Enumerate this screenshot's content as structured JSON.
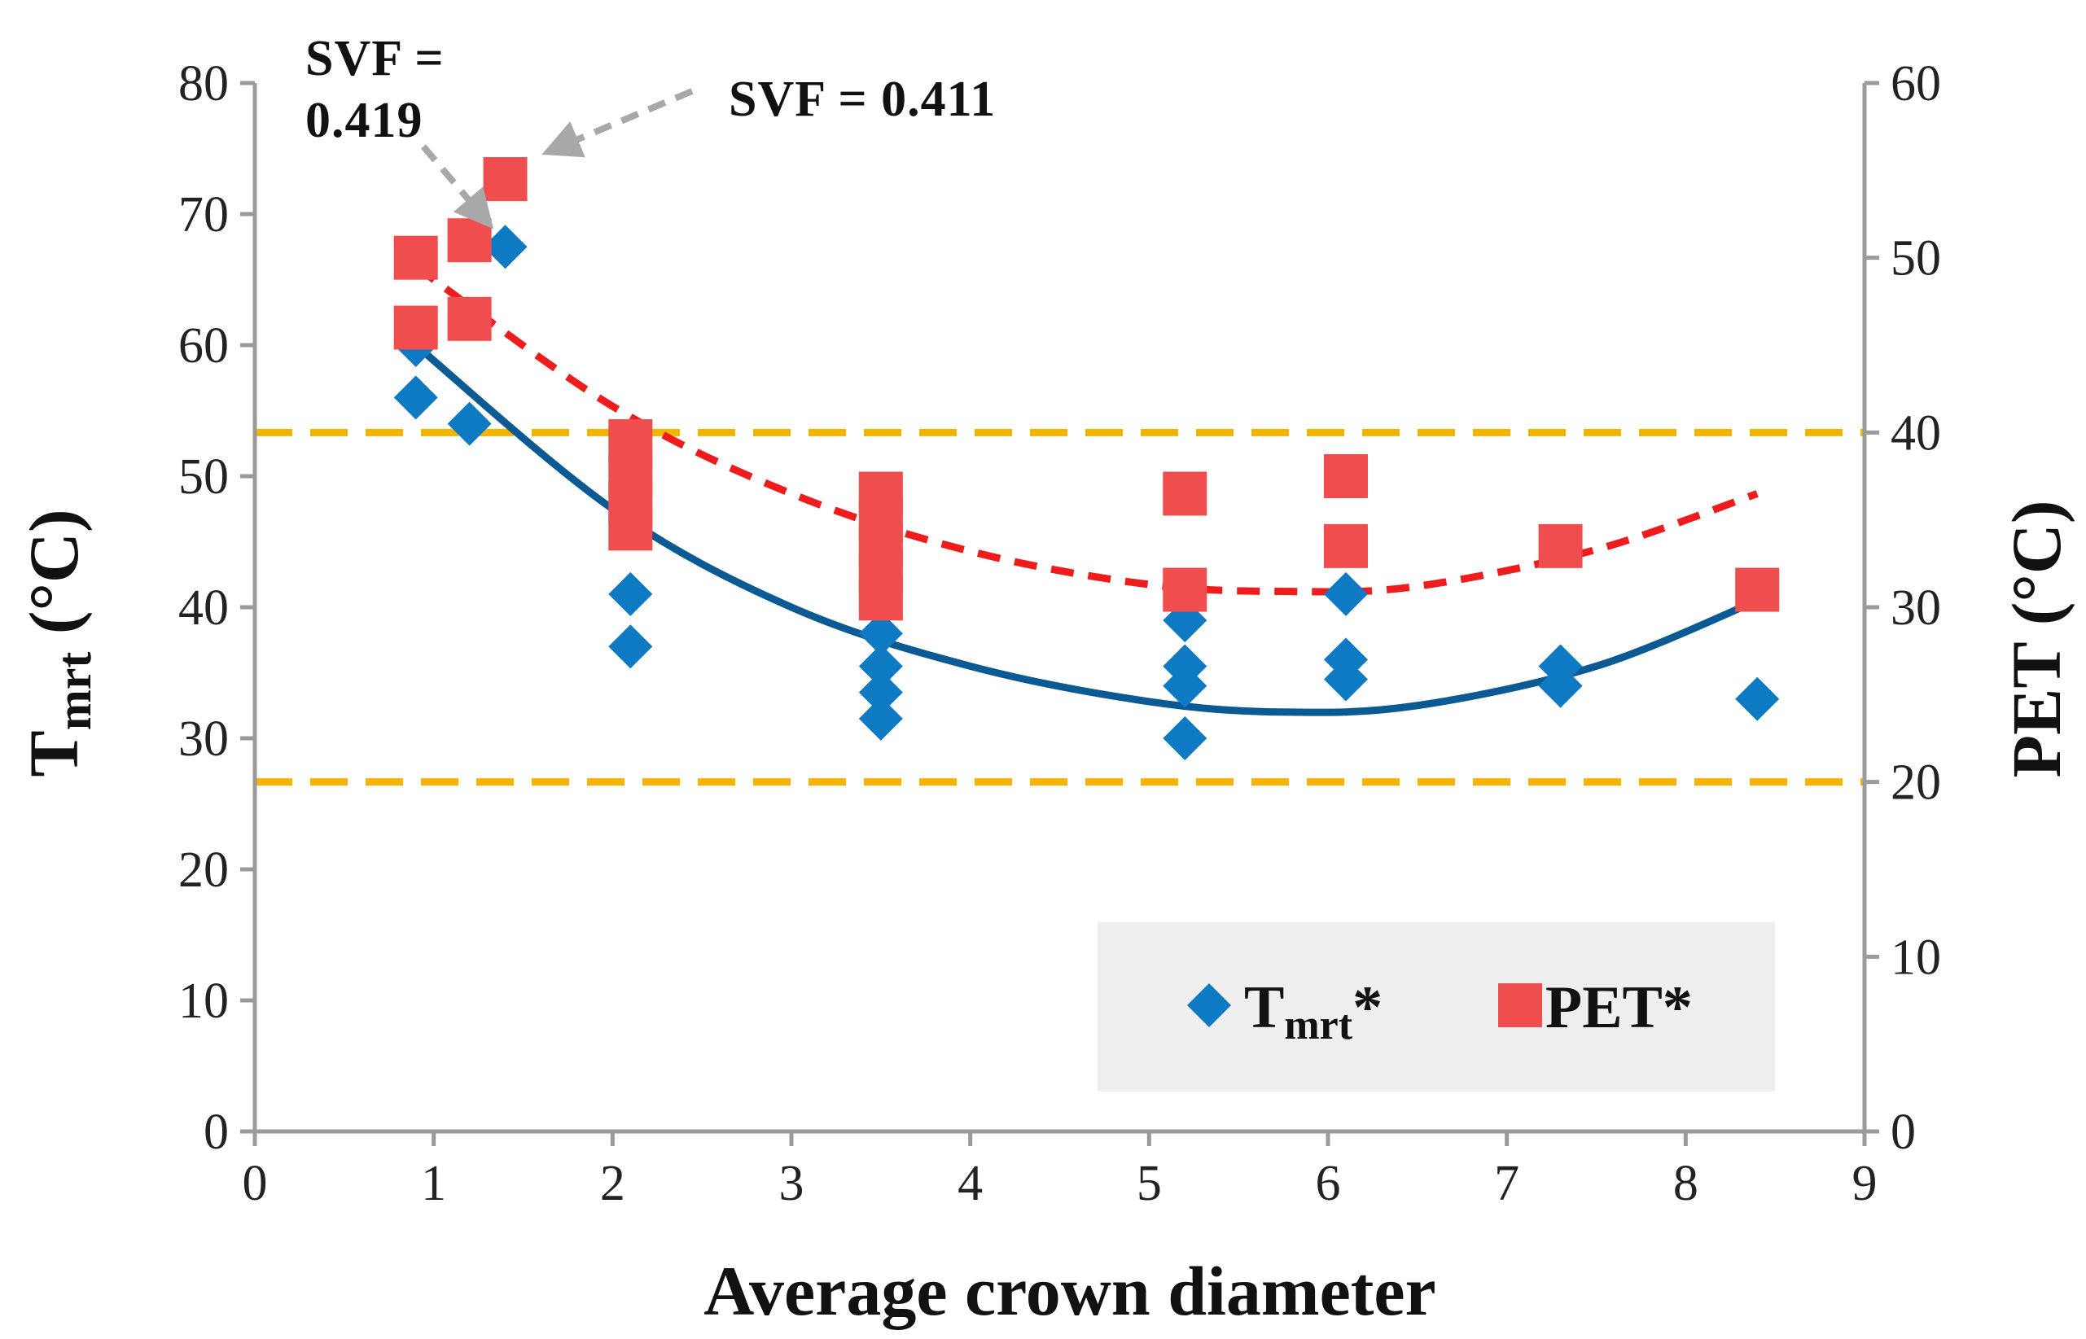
{
  "chart_data": {
    "type": "scatter",
    "title": "",
    "xlabel": "Average crown diameter",
    "ylabel_left": {
      "main": "T",
      "sub": "mrt",
      "unit": " (°C)"
    },
    "ylabel_right": "PET (°C)",
    "xlim": [
      0,
      9
    ],
    "ylim_left": [
      0,
      80
    ],
    "ylim_right": [
      0,
      60
    ],
    "x_ticks": [
      "0",
      "1",
      "2",
      "3",
      "4",
      "5",
      "6",
      "7",
      "8",
      "9"
    ],
    "y_left_ticks": [
      "0",
      "10",
      "20",
      "30",
      "40",
      "50",
      "60",
      "70",
      "80"
    ],
    "y_right_ticks": [
      "0",
      "10",
      "20",
      "30",
      "40",
      "50",
      "60"
    ],
    "grid": false,
    "series": [
      {
        "name": "Tmrt*",
        "legend_main": "T",
        "legend_sub": "mrt",
        "legend_suffix": "*",
        "axis": "left",
        "marker": "diamond",
        "color": "#0E7AC4",
        "points": [
          [
            0.9,
            60
          ],
          [
            0.9,
            56
          ],
          [
            1.2,
            62
          ],
          [
            1.2,
            54
          ],
          [
            1.4,
            67.5
          ],
          [
            2.1,
            41
          ],
          [
            2.1,
            37
          ],
          [
            3.5,
            38
          ],
          [
            3.5,
            35.5
          ],
          [
            3.5,
            33.5
          ],
          [
            3.5,
            31.5
          ],
          [
            5.2,
            39
          ],
          [
            5.2,
            35.5
          ],
          [
            5.2,
            34
          ],
          [
            5.2,
            30
          ],
          [
            6.1,
            41
          ],
          [
            6.1,
            36
          ],
          [
            6.1,
            34.5
          ],
          [
            7.3,
            35.5
          ],
          [
            7.3,
            34
          ],
          [
            8.4,
            33
          ]
        ]
      },
      {
        "name": "PET*",
        "legend_main": "PET",
        "legend_suffix": "*",
        "axis": "right",
        "marker": "square",
        "color": "#F04E4E",
        "points": [
          [
            0.9,
            50
          ],
          [
            0.9,
            46
          ],
          [
            1.2,
            51
          ],
          [
            1.2,
            46.5
          ],
          [
            1.4,
            54.5
          ],
          [
            2.1,
            39.5
          ],
          [
            2.1,
            37.5
          ],
          [
            2.1,
            36
          ],
          [
            2.1,
            34.5
          ],
          [
            3.5,
            36.5
          ],
          [
            3.5,
            35
          ],
          [
            3.5,
            33.5
          ],
          [
            3.5,
            32
          ],
          [
            3.5,
            30.5
          ],
          [
            5.2,
            36.5
          ],
          [
            5.2,
            31
          ],
          [
            6.1,
            37.5
          ],
          [
            6.1,
            33.5
          ],
          [
            7.3,
            33.5
          ],
          [
            8.4,
            31
          ]
        ]
      }
    ],
    "trendlines": [
      {
        "series": "Tmrt*",
        "type": "polynomial-2",
        "axis": "left",
        "style": "solid",
        "color": "#0B5A94",
        "points": [
          [
            0.9,
            60
          ],
          [
            2.0,
            47.5
          ],
          [
            3.0,
            40
          ],
          [
            4.0,
            35.5
          ],
          [
            5.0,
            32.8
          ],
          [
            5.75,
            32
          ],
          [
            6.5,
            32.5
          ],
          [
            7.5,
            35.5
          ],
          [
            8.4,
            40.5
          ]
        ]
      },
      {
        "series": "PET*",
        "type": "polynomial-2",
        "axis": "right",
        "style": "dashed",
        "color": "#EE1C1C",
        "points": [
          [
            0.9,
            49.5
          ],
          [
            2.0,
            41.5
          ],
          [
            3.0,
            36.5
          ],
          [
            4.0,
            33.2
          ],
          [
            5.0,
            31.3
          ],
          [
            5.8,
            30.9
          ],
          [
            6.5,
            31.2
          ],
          [
            7.5,
            33.3
          ],
          [
            8.4,
            36.5
          ]
        ]
      }
    ],
    "reference_lines": [
      {
        "axis": "right",
        "value": 40,
        "style": "dashed",
        "color": "#F5B400"
      },
      {
        "axis": "right",
        "value": 20,
        "style": "dashed",
        "color": "#F5B400"
      }
    ],
    "annotations": [
      {
        "lines": [
          "SVF =",
          "0.419"
        ],
        "arrow_target": [
          1.3,
          69.5
        ]
      },
      {
        "lines": [
          "SVF = 0.411"
        ],
        "arrow_target": [
          1.65,
          75
        ]
      }
    ],
    "legend_position": "bottom-right"
  }
}
